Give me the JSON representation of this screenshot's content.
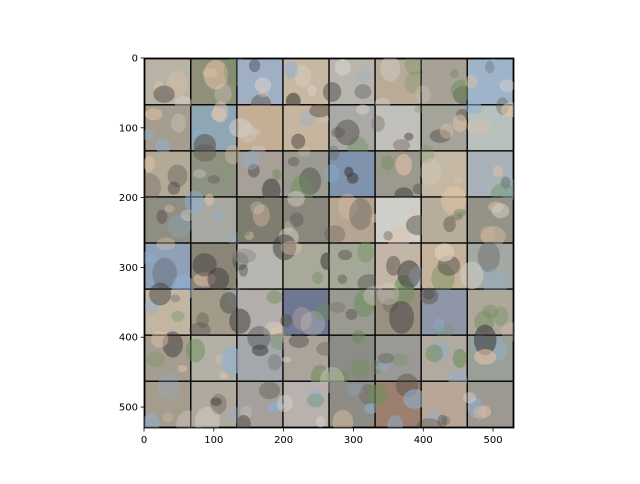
{
  "figure": {
    "background": "#ffffff"
  },
  "chart_data": {
    "type": "heatmap",
    "title": "",
    "xlabel": "",
    "ylabel": "",
    "description": "8x8 grid of generated RGB image samples shown with imshow",
    "grid": false,
    "legend": "none",
    "xlim": [
      0,
      530
    ],
    "ylim": [
      530,
      0
    ],
    "x_inverted": false,
    "y_inverted": true,
    "xticks": [
      0,
      100,
      200,
      300,
      400,
      500
    ],
    "xtick_labels": [
      "0",
      "100",
      "200",
      "300",
      "400",
      "500"
    ],
    "yticks": [
      0,
      100,
      200,
      300,
      400,
      500
    ],
    "ytick_labels": [
      "0",
      "100",
      "200",
      "300",
      "400",
      "500"
    ],
    "tile_grid": {
      "rows": 8,
      "cols": 8,
      "tile_size": 64,
      "padding": 2
    },
    "tile_colors": [
      [
        "#b9b3a6",
        "#8f8f7a",
        "#9fb0c4",
        "#c7b8a3",
        "#b7b5ad",
        "#b9ab98",
        "#a8a196",
        "#9fb4c9"
      ],
      [
        "#a59d8f",
        "#8fa6b5",
        "#c4ae96",
        "#c6b59f",
        "#a9aaa8",
        "#c2c0bb",
        "#a4a49a",
        "#b7c0bd"
      ],
      [
        "#b3a996",
        "#8d9281",
        "#a7a099",
        "#9c9b91",
        "#7f93ad",
        "#9c9a8e",
        "#c4b8a5",
        "#a8b2b8"
      ],
      [
        "#8e8e82",
        "#a8a8a2",
        "#7f7c70",
        "#8a877c",
        "#b5a592",
        "#cfcfc9",
        "#b6ad9c",
        "#939388"
      ],
      [
        "#8fa1b7",
        "#8a8479",
        "#b7b5b0",
        "#a8a999",
        "#a4a897",
        "#c4b6a6",
        "#c4b29a",
        "#a4a8a3"
      ],
      [
        "#c2b6a3",
        "#a39b89",
        "#b4aeab",
        "#6f7892",
        "#9a9a93",
        "#9a9082",
        "#8f96a8",
        "#aea79b"
      ],
      [
        "#a59e90",
        "#b3b1a5",
        "#a4a8ad",
        "#aba49a",
        "#8c8c86",
        "#9a9996",
        "#b0aaa0",
        "#9aa098"
      ],
      [
        "#a59c8d",
        "#b0a99e",
        "#a5a09b",
        "#b8b1ad",
        "#8d8c85",
        "#9d7f6f",
        "#b8a797",
        "#9d9891"
      ]
    ]
  }
}
